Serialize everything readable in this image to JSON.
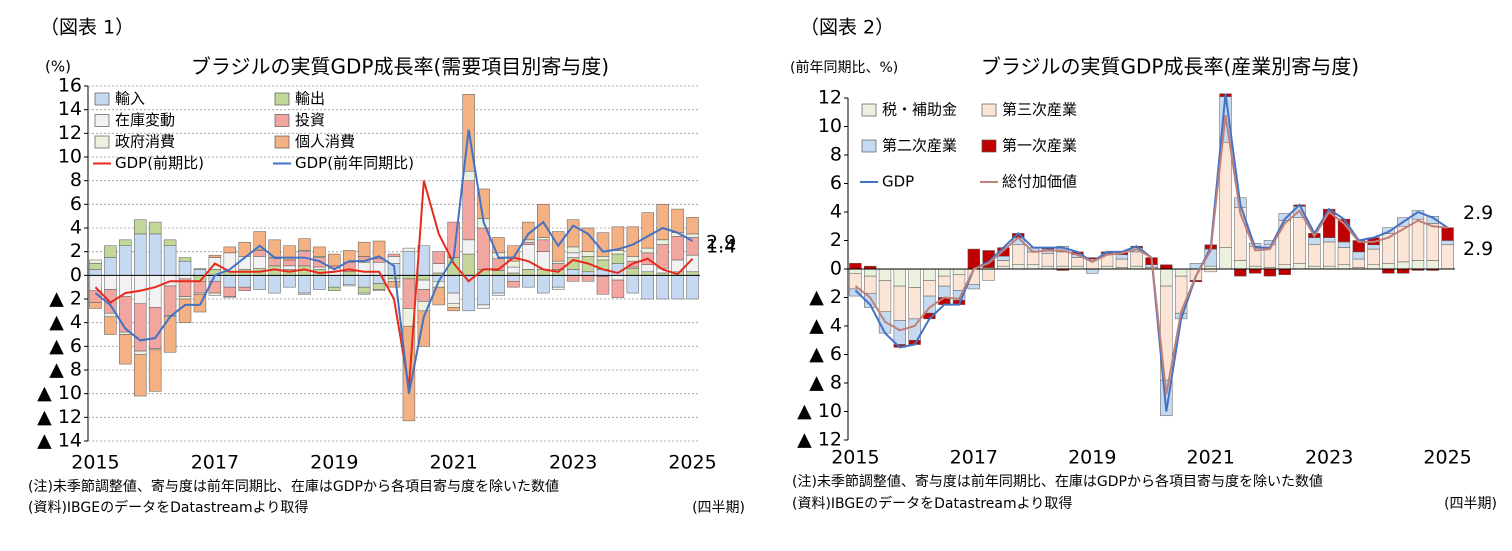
{
  "chart_data": [
    {
      "type": "bar",
      "stacked": true,
      "grid": true,
      "figure_label": "（図表 1）",
      "unit": "(%)",
      "title": "ブラジルの実質GDP成長率(需要項目別寄与度)",
      "notes": [
        "(注)未季節調整値、寄与度は前年同期比、在庫はGDPから各項目寄与度を除いた数値",
        "(資料)IBGEのデータをDatastreamより取得"
      ],
      "period_label": "(四半期)",
      "categories": [
        "2015",
        null,
        null,
        null,
        null,
        null,
        null,
        null,
        "2017",
        null,
        null,
        null,
        null,
        null,
        null,
        null,
        "2019",
        null,
        null,
        null,
        null,
        null,
        null,
        null,
        "2021",
        null,
        null,
        null,
        null,
        null,
        null,
        null,
        "2023",
        null,
        null,
        null,
        null,
        null,
        null,
        null,
        "2025"
      ],
      "ylim": [
        -14,
        16
      ],
      "yticks": [
        {
          "value": -14,
          "label": "▲ 14"
        },
        {
          "value": -12,
          "label": "▲ 12"
        },
        {
          "value": -10,
          "label": "▲ 10"
        },
        {
          "value": -8,
          "label": "▲ 8"
        },
        {
          "value": -6,
          "label": "▲ 6"
        },
        {
          "value": -4,
          "label": "▲ 4"
        },
        {
          "value": -2,
          "label": "▲ 2"
        },
        0,
        2,
        4,
        6,
        8,
        10,
        12,
        14,
        16
      ],
      "series": [
        {
          "name": "輸入",
          "type": "bar",
          "color": "#c5d9f1",
          "values": [
            0.5,
            1.5,
            2.5,
            3.5,
            3.5,
            2.5,
            1.2,
            0.5,
            -0.5,
            -1.0,
            -1.0,
            -1.2,
            -1.5,
            -1.0,
            -1.5,
            -1.2,
            -1.0,
            -0.8,
            -1.0,
            -0.7,
            1.0,
            2.0,
            2.5,
            -0.5,
            -1.5,
            -3.0,
            -2.5,
            -1.5,
            -0.5,
            -1.0,
            -1.5,
            -1.0,
            0.5,
            0.3,
            0.5,
            1.0,
            -1.5,
            -2.0,
            -2.0,
            -2.0,
            -2.0
          ]
        },
        {
          "name": "輸出",
          "type": "bar",
          "color": "#c4d79b",
          "values": [
            0.5,
            1.0,
            0.5,
            1.2,
            1.0,
            0.5,
            0.3,
            -0.5,
            0.5,
            0.3,
            0.5,
            0.6,
            0.8,
            0.5,
            0.8,
            0.5,
            -0.3,
            0.3,
            -0.5,
            -0.5,
            -0.3,
            -0.3,
            -0.4,
            0.2,
            1.5,
            1.8,
            0.5,
            0.4,
            0.2,
            0.5,
            0.5,
            0.5,
            1.0,
            1.3,
            0.8,
            0.8,
            0.6,
            0.3,
            0.2,
            0.3,
            0.3
          ]
        },
        {
          "name": "在庫変動",
          "type": "bar",
          "color": "#f2f2f2",
          "values": [
            -1.3,
            -1.2,
            -1.8,
            -2.4,
            -2.7,
            -0.9,
            -0.3,
            0.1,
            1.0,
            1.6,
            1.1,
            1.0,
            0,
            0.3,
            -0.1,
            0.2,
            0.6,
            0,
            1.1,
            1.1,
            0.6,
            0.3,
            -0.8,
            0.8,
            -0.9,
            1.2,
            -0.3,
            -0.2,
            0.5,
            2.1,
            1.5,
            -0.2,
            0.4,
            0,
            -0.1,
            -0.4,
            0.1,
            0.6,
            0.4,
            1.0,
            1.4
          ]
        },
        {
          "name": "投資",
          "type": "bar",
          "color": "#f2a6a0",
          "values": [
            -1.0,
            -2.0,
            -3.0,
            -4.0,
            -3.5,
            -2.5,
            -1.5,
            -1.0,
            -1.0,
            -0.8,
            -0.3,
            0.5,
            0.6,
            0.5,
            1.2,
            0.8,
            0.2,
            0.8,
            0.5,
            0.3,
            0.2,
            -2.5,
            -1.0,
            1.0,
            3.0,
            5.0,
            3.5,
            1.0,
            -0.5,
            0.2,
            1.0,
            0.5,
            -0.5,
            -0.5,
            -1.5,
            -1.5,
            0.5,
            1.0,
            2.0,
            2.0,
            1.5
          ]
        },
        {
          "name": "政府消費",
          "type": "bar",
          "color": "#ebf1de",
          "values": [
            0.3,
            -0.3,
            -0.2,
            -0.3,
            -0.1,
            -0.1,
            -0.2,
            -0.1,
            -0.2,
            -0.1,
            0,
            0.1,
            0.1,
            0,
            0.1,
            0.1,
            0,
            -0.1,
            -0.1,
            -0.1,
            -0.2,
            -1.5,
            -0.8,
            -0.5,
            -0.3,
            0.8,
            0.8,
            0.5,
            0.5,
            0.2,
            0.2,
            0.2,
            0.5,
            0.4,
            0.3,
            0.3,
            0.4,
            0.4,
            0.4,
            0.3,
            0.3
          ]
        },
        {
          "name": "個人消費",
          "type": "bar",
          "color": "#f4b183",
          "values": [
            -0.5,
            -1.5,
            -2.5,
            -3.5,
            -3.5,
            -3.0,
            -2.0,
            -1.5,
            0.2,
            0.5,
            1.2,
            1.5,
            1.5,
            1.2,
            1.0,
            0.8,
            1.0,
            1.0,
            1.2,
            1.5,
            -0.5,
            -8.0,
            -3.0,
            -1.5,
            -0.3,
            6.5,
            2.5,
            1.3,
            1.3,
            1.5,
            2.8,
            2.5,
            2.3,
            2.0,
            2.0,
            2.0,
            2.5,
            3.0,
            3.0,
            2.0,
            1.4
          ]
        },
        {
          "name": "GDP(前期比)",
          "type": "line",
          "color": "#e8291c",
          "end_label": true,
          "values": [
            -1.0,
            -2.3,
            -1.5,
            -1.3,
            -1.0,
            -0.5,
            -0.5,
            -0.5,
            1.0,
            0.3,
            0.3,
            0.3,
            0.5,
            0.3,
            0.5,
            0.2,
            0.3,
            0.5,
            0.3,
            0.3,
            -2.0,
            -9.5,
            8.0,
            3.5,
            1.0,
            -0.5,
            0.5,
            0.5,
            1.5,
            1.2,
            0.5,
            0.3,
            1.3,
            1.0,
            0.5,
            0.2,
            1.0,
            1.4,
            0.5,
            0.1,
            1.4
          ]
        },
        {
          "name": "GDP(前年同期比)",
          "type": "line",
          "color": "#4472c4",
          "end_label": true,
          "values": [
            -1.5,
            -2.5,
            -4.5,
            -5.5,
            -5.3,
            -3.5,
            -2.5,
            -2.5,
            0,
            0.5,
            1.5,
            2.5,
            1.5,
            1.5,
            1.5,
            1.2,
            0.5,
            1.2,
            1.2,
            1.6,
            0.8,
            -10.0,
            -3.5,
            -0.5,
            1.5,
            12.3,
            4.5,
            1.5,
            1.5,
            3.5,
            4.5,
            2.5,
            4.2,
            3.5,
            2.0,
            2.2,
            2.6,
            3.3,
            4.0,
            3.6,
            2.9
          ]
        }
      ]
    },
    {
      "type": "bar",
      "stacked": true,
      "grid": false,
      "figure_label": "（図表 2）",
      "unit": "(前年同期比、%)",
      "title": "ブラジルの実質GDP成長率(産業別寄与度)",
      "notes": [
        "(注)未季節調整値、寄与度は前年同期比、在庫はGDPから各項目寄与度を除いた数値",
        "(資料)IBGEのデータをDatastreamより取得"
      ],
      "period_label": "(四半期)",
      "categories": [
        "2015",
        null,
        null,
        null,
        null,
        null,
        null,
        null,
        "2017",
        null,
        null,
        null,
        null,
        null,
        null,
        null,
        "2019",
        null,
        null,
        null,
        null,
        null,
        null,
        null,
        "2021",
        null,
        null,
        null,
        null,
        null,
        null,
        null,
        "2023",
        null,
        null,
        null,
        null,
        null,
        null,
        null,
        "2025"
      ],
      "ylim": [
        -12,
        12
      ],
      "yticks": [
        {
          "value": -12,
          "label": "▲ 12"
        },
        {
          "value": -10,
          "label": "▲ 10"
        },
        {
          "value": -8,
          "label": "▲ 8"
        },
        {
          "value": -6,
          "label": "▲ 6"
        },
        {
          "value": -4,
          "label": "▲ 4"
        },
        {
          "value": -2,
          "label": "▲ 2"
        },
        0,
        2,
        4,
        6,
        8,
        10,
        12
      ],
      "series": [
        {
          "name": "税・補助金",
          "type": "bar",
          "color": "#ebf1de",
          "values": [
            -0.3,
            -0.5,
            -0.8,
            -1.2,
            -1.3,
            -0.8,
            -0.5,
            -0.4,
            0,
            0.1,
            0.2,
            0.3,
            0.3,
            0.2,
            0.2,
            0.2,
            0,
            0.2,
            0.1,
            0.2,
            0,
            -1.2,
            -0.5,
            0,
            0.2,
            1.5,
            0.6,
            0.2,
            0.1,
            0.3,
            0.4,
            0.2,
            0.2,
            0.3,
            0.1,
            0.3,
            0.4,
            0.5,
            0.6,
            0.6,
            0
          ]
        },
        {
          "name": "第三次産業",
          "type": "bar",
          "color": "#fbe5d6",
          "values": [
            -1.1,
            -1.2,
            -2.2,
            -2.4,
            -2.2,
            -1.1,
            -0.7,
            -1.1,
            -1.1,
            -0.8,
            0.4,
            1.4,
            0.9,
            0.9,
            1.0,
            0.6,
            0.7,
            0.8,
            0.6,
            1.0,
            0.1,
            -6.6,
            -2.6,
            -0.8,
            -0.2,
            7.4,
            3.7,
            1.4,
            1.6,
            3.1,
            3.2,
            1.5,
            1.7,
            1.2,
            0.6,
            1.1,
            2.1,
            2.5,
            2.9,
            2.6,
            1.7
          ]
        },
        {
          "name": "第二次産業",
          "type": "bar",
          "color": "#c5d9f1",
          "values": [
            -0.5,
            -1.0,
            -1.5,
            -1.7,
            -1.5,
            -1.2,
            -0.8,
            -0.7,
            -0.3,
            0,
            0.3,
            0.5,
            0.3,
            0.3,
            0.4,
            0.2,
            -0.3,
            0.1,
            0.3,
            0.3,
            0.2,
            -2.5,
            -0.4,
            0.4,
            1.2,
            3.2,
            0.7,
            0.2,
            0.3,
            0.5,
            0.8,
            0.5,
            0.3,
            0.4,
            0.5,
            0.3,
            0.4,
            0.6,
            0.6,
            0.5,
            0.3
          ]
        },
        {
          "name": "第一次産業",
          "type": "bar",
          "color": "#c00000",
          "values": [
            0.4,
            0.2,
            0,
            -0.2,
            -0.3,
            -0.4,
            -0.5,
            -0.3,
            1.4,
            1.2,
            0.6,
            0.3,
            0,
            0.1,
            -0.1,
            0.2,
            0.1,
            0.1,
            0.2,
            0.1,
            0.5,
            0.3,
            0,
            -0.1,
            0.3,
            0.2,
            -0.5,
            -0.3,
            -0.5,
            -0.4,
            0.1,
            0.3,
            2.0,
            1.6,
            0.8,
            0.5,
            -0.3,
            -0.3,
            -0.1,
            -0.1,
            0.9
          ]
        },
        {
          "name": "GDP",
          "type": "line",
          "color": "#4472c4",
          "end_label": true,
          "values": [
            -1.5,
            -2.5,
            -4.5,
            -5.5,
            -5.3,
            -3.5,
            -2.5,
            -2.5,
            0,
            0.5,
            1.5,
            2.5,
            1.5,
            1.5,
            1.5,
            1.2,
            0.5,
            1.2,
            1.2,
            1.6,
            0.8,
            -10.0,
            -3.5,
            -0.5,
            1.5,
            12.3,
            4.5,
            1.5,
            1.5,
            3.5,
            4.5,
            2.5,
            4.2,
            3.5,
            2.0,
            2.2,
            2.6,
            3.3,
            4.0,
            3.6,
            2.9
          ]
        },
        {
          "name": "総付加価値",
          "type": "line",
          "color": "#c0807a",
          "end_label": true,
          "values": [
            -1.2,
            -2.0,
            -3.7,
            -4.3,
            -4.0,
            -2.7,
            -2.0,
            -2.1,
            0,
            0.4,
            1.3,
            2.2,
            1.2,
            1.3,
            1.3,
            1.0,
            0.5,
            1.0,
            1.1,
            1.4,
            0.8,
            -8.8,
            -3.0,
            -0.5,
            1.3,
            10.8,
            3.9,
            1.3,
            1.4,
            3.2,
            4.1,
            2.3,
            4.0,
            3.2,
            1.9,
            1.9,
            2.2,
            2.8,
            3.4,
            3.0,
            2.9
          ]
        }
      ]
    }
  ]
}
